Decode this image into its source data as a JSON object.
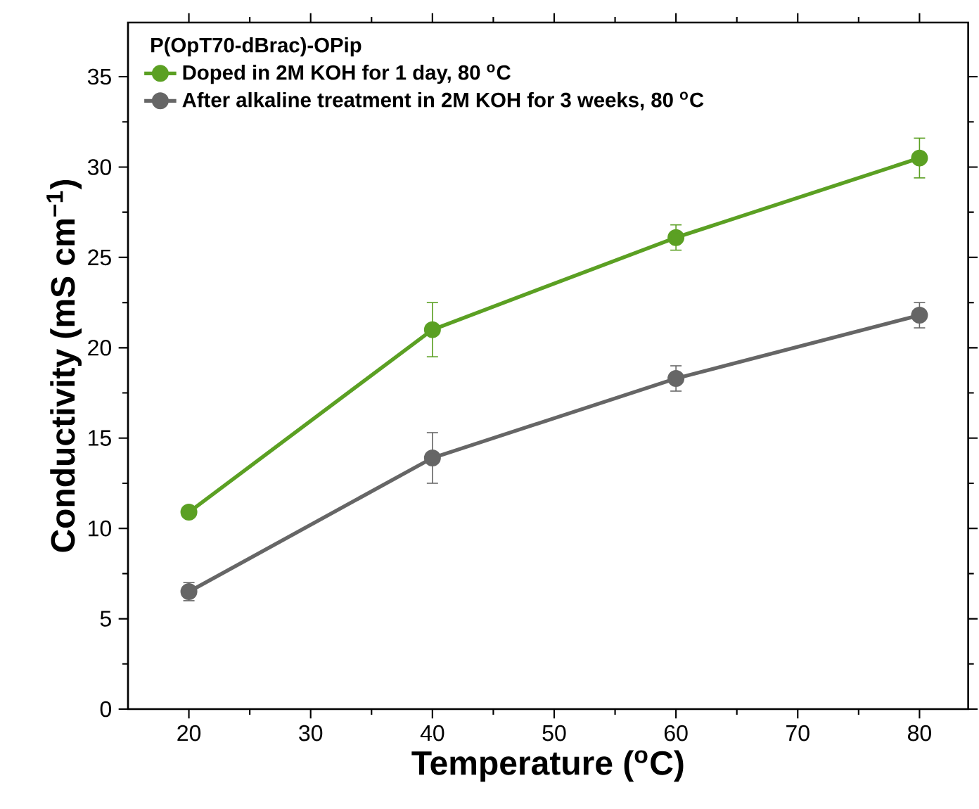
{
  "chart_data": {
    "type": "line",
    "legend_title": "P(OpT70-dBrac)-OPip",
    "xlabel": "Temperature ($^{o}$C)",
    "ylabel": "Conductivity (mS cm$^{−1}$)",
    "x": [
      20,
      40,
      60,
      80
    ],
    "series": [
      {
        "name": "Doped in 2M KOH for 1 day, 80 $^{o}$C",
        "color": "#5ba023",
        "values": [
          10.9,
          21.0,
          26.1,
          30.5
        ],
        "errors": [
          null,
          1.5,
          0.7,
          1.1
        ]
      },
      {
        "name": "After alkaline treatment in 2M KOH for 3 weeks, 80 $^{o}$C",
        "color": "#666666",
        "values": [
          6.5,
          13.9,
          18.3,
          21.8
        ],
        "errors": [
          0.5,
          1.4,
          0.7,
          0.7
        ]
      }
    ],
    "xlim": [
      15,
      84
    ],
    "ylim": [
      0,
      38
    ],
    "xticks": [
      20,
      30,
      40,
      50,
      60,
      70,
      80
    ],
    "yticks": [
      0,
      5,
      10,
      15,
      20,
      25,
      30,
      35
    ],
    "legend": "top left",
    "marker": "circle",
    "line_style": "solid"
  }
}
